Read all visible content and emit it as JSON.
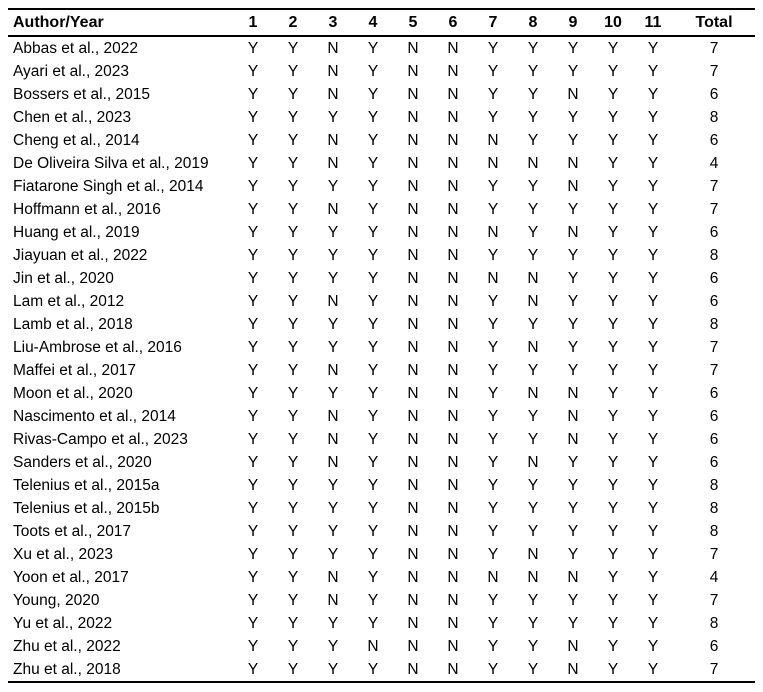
{
  "table": {
    "header": {
      "author_col": "Author/Year",
      "item_cols": [
        "1",
        "2",
        "3",
        "4",
        "5",
        "6",
        "7",
        "8",
        "9",
        "10",
        "11"
      ],
      "total_col": "Total"
    },
    "rows": [
      {
        "author": "Abbas et al., 2022",
        "items": [
          "Y",
          "Y",
          "N",
          "Y",
          "N",
          "N",
          "Y",
          "Y",
          "Y",
          "Y",
          "Y"
        ],
        "total": "7"
      },
      {
        "author": "Ayari et al., 2023",
        "items": [
          "Y",
          "Y",
          "N",
          "Y",
          "N",
          "N",
          "Y",
          "Y",
          "Y",
          "Y",
          "Y"
        ],
        "total": "7"
      },
      {
        "author": "Bossers et al., 2015",
        "items": [
          "Y",
          "Y",
          "N",
          "Y",
          "N",
          "N",
          "Y",
          "Y",
          "N",
          "Y",
          "Y"
        ],
        "total": "6"
      },
      {
        "author": "Chen et al., 2023",
        "items": [
          "Y",
          "Y",
          "Y",
          "Y",
          "N",
          "N",
          "Y",
          "Y",
          "Y",
          "Y",
          "Y"
        ],
        "total": "8"
      },
      {
        "author": "Cheng et al., 2014",
        "items": [
          "Y",
          "Y",
          "N",
          "Y",
          "N",
          "N",
          "N",
          "Y",
          "Y",
          "Y",
          "Y"
        ],
        "total": "6"
      },
      {
        "author": "De Oliveira Silva et al., 2019",
        "items": [
          "Y",
          "Y",
          "N",
          "Y",
          "N",
          "N",
          "N",
          "N",
          "N",
          "Y",
          "Y"
        ],
        "total": "4"
      },
      {
        "author": "Fiatarone Singh et al., 2014",
        "items": [
          "Y",
          "Y",
          "Y",
          "Y",
          "N",
          "N",
          "Y",
          "Y",
          "N",
          "Y",
          "Y"
        ],
        "total": "7"
      },
      {
        "author": "Hoffmann et al., 2016",
        "items": [
          "Y",
          "Y",
          "N",
          "Y",
          "N",
          "N",
          "Y",
          "Y",
          "Y",
          "Y",
          "Y"
        ],
        "total": "7"
      },
      {
        "author": "Huang et al., 2019",
        "items": [
          "Y",
          "Y",
          "Y",
          "Y",
          "N",
          "N",
          "N",
          "Y",
          "N",
          "Y",
          "Y"
        ],
        "total": "6"
      },
      {
        "author": "Jiayuan et al., 2022",
        "items": [
          "Y",
          "Y",
          "Y",
          "Y",
          "N",
          "N",
          "Y",
          "Y",
          "Y",
          "Y",
          "Y"
        ],
        "total": "8"
      },
      {
        "author": "Jin et al., 2020",
        "items": [
          "Y",
          "Y",
          "Y",
          "Y",
          "N",
          "N",
          "N",
          "N",
          "Y",
          "Y",
          "Y"
        ],
        "total": "6"
      },
      {
        "author": "Lam et al., 2012",
        "items": [
          "Y",
          "Y",
          "N",
          "Y",
          "N",
          "N",
          "Y",
          "N",
          "Y",
          "Y",
          "Y"
        ],
        "total": "6"
      },
      {
        "author": "Lamb et al., 2018",
        "items": [
          "Y",
          "Y",
          "Y",
          "Y",
          "N",
          "N",
          "Y",
          "Y",
          "Y",
          "Y",
          "Y"
        ],
        "total": "8"
      },
      {
        "author": "Liu-Ambrose et al., 2016",
        "items": [
          "Y",
          "Y",
          "Y",
          "Y",
          "N",
          "N",
          "Y",
          "N",
          "Y",
          "Y",
          "Y"
        ],
        "total": "7"
      },
      {
        "author": "Maffei et al., 2017",
        "items": [
          "Y",
          "Y",
          "N",
          "Y",
          "N",
          "N",
          "Y",
          "Y",
          "Y",
          "Y",
          "Y"
        ],
        "total": "7"
      },
      {
        "author": "Moon et al., 2020",
        "items": [
          "Y",
          "Y",
          "Y",
          "Y",
          "N",
          "N",
          "Y",
          "N",
          "N",
          "Y",
          "Y"
        ],
        "total": "6"
      },
      {
        "author": "Nascimento et al., 2014",
        "items": [
          "Y",
          "Y",
          "N",
          "Y",
          "N",
          "N",
          "Y",
          "Y",
          "N",
          "Y",
          "Y"
        ],
        "total": "6"
      },
      {
        "author": "Rivas-Campo et al., 2023",
        "items": [
          "Y",
          "Y",
          "N",
          "Y",
          "N",
          "N",
          "Y",
          "Y",
          "N",
          "Y",
          "Y"
        ],
        "total": "6"
      },
      {
        "author": "Sanders et al., 2020",
        "items": [
          "Y",
          "Y",
          "N",
          "Y",
          "N",
          "N",
          "Y",
          "N",
          "Y",
          "Y",
          "Y"
        ],
        "total": "6"
      },
      {
        "author": "Telenius et al., 2015a",
        "items": [
          "Y",
          "Y",
          "Y",
          "Y",
          "N",
          "N",
          "Y",
          "Y",
          "Y",
          "Y",
          "Y"
        ],
        "total": "8"
      },
      {
        "author": "Telenius et al., 2015b",
        "items": [
          "Y",
          "Y",
          "Y",
          "Y",
          "N",
          "N",
          "Y",
          "Y",
          "Y",
          "Y",
          "Y"
        ],
        "total": "8"
      },
      {
        "author": "Toots et al., 2017",
        "items": [
          "Y",
          "Y",
          "Y",
          "Y",
          "N",
          "N",
          "Y",
          "Y",
          "Y",
          "Y",
          "Y"
        ],
        "total": "8"
      },
      {
        "author": "Xu et al., 2023",
        "items": [
          "Y",
          "Y",
          "Y",
          "Y",
          "N",
          "N",
          "Y",
          "N",
          "Y",
          "Y",
          "Y"
        ],
        "total": "7"
      },
      {
        "author": "Yoon et al., 2017",
        "items": [
          "Y",
          "Y",
          "N",
          "Y",
          "N",
          "N",
          "N",
          "N",
          "N",
          "Y",
          "Y"
        ],
        "total": "4"
      },
      {
        "author": "Young, 2020",
        "items": [
          "Y",
          "Y",
          "N",
          "Y",
          "N",
          "N",
          "Y",
          "Y",
          "Y",
          "Y",
          "Y"
        ],
        "total": "7"
      },
      {
        "author": "Yu et al., 2022",
        "items": [
          "Y",
          "Y",
          "Y",
          "Y",
          "N",
          "N",
          "Y",
          "Y",
          "Y",
          "Y",
          "Y"
        ],
        "total": "8"
      },
      {
        "author": "Zhu et al., 2022",
        "items": [
          "Y",
          "Y",
          "Y",
          "N",
          "N",
          "N",
          "Y",
          "Y",
          "N",
          "Y",
          "Y"
        ],
        "total": "6"
      },
      {
        "author": "Zhu et al., 2018",
        "items": [
          "Y",
          "Y",
          "Y",
          "Y",
          "N",
          "N",
          "Y",
          "Y",
          "N",
          "Y",
          "Y"
        ],
        "total": "7"
      }
    ]
  },
  "colors": {
    "text": "#000000",
    "background": "#ffffff",
    "rule": "#000000"
  }
}
